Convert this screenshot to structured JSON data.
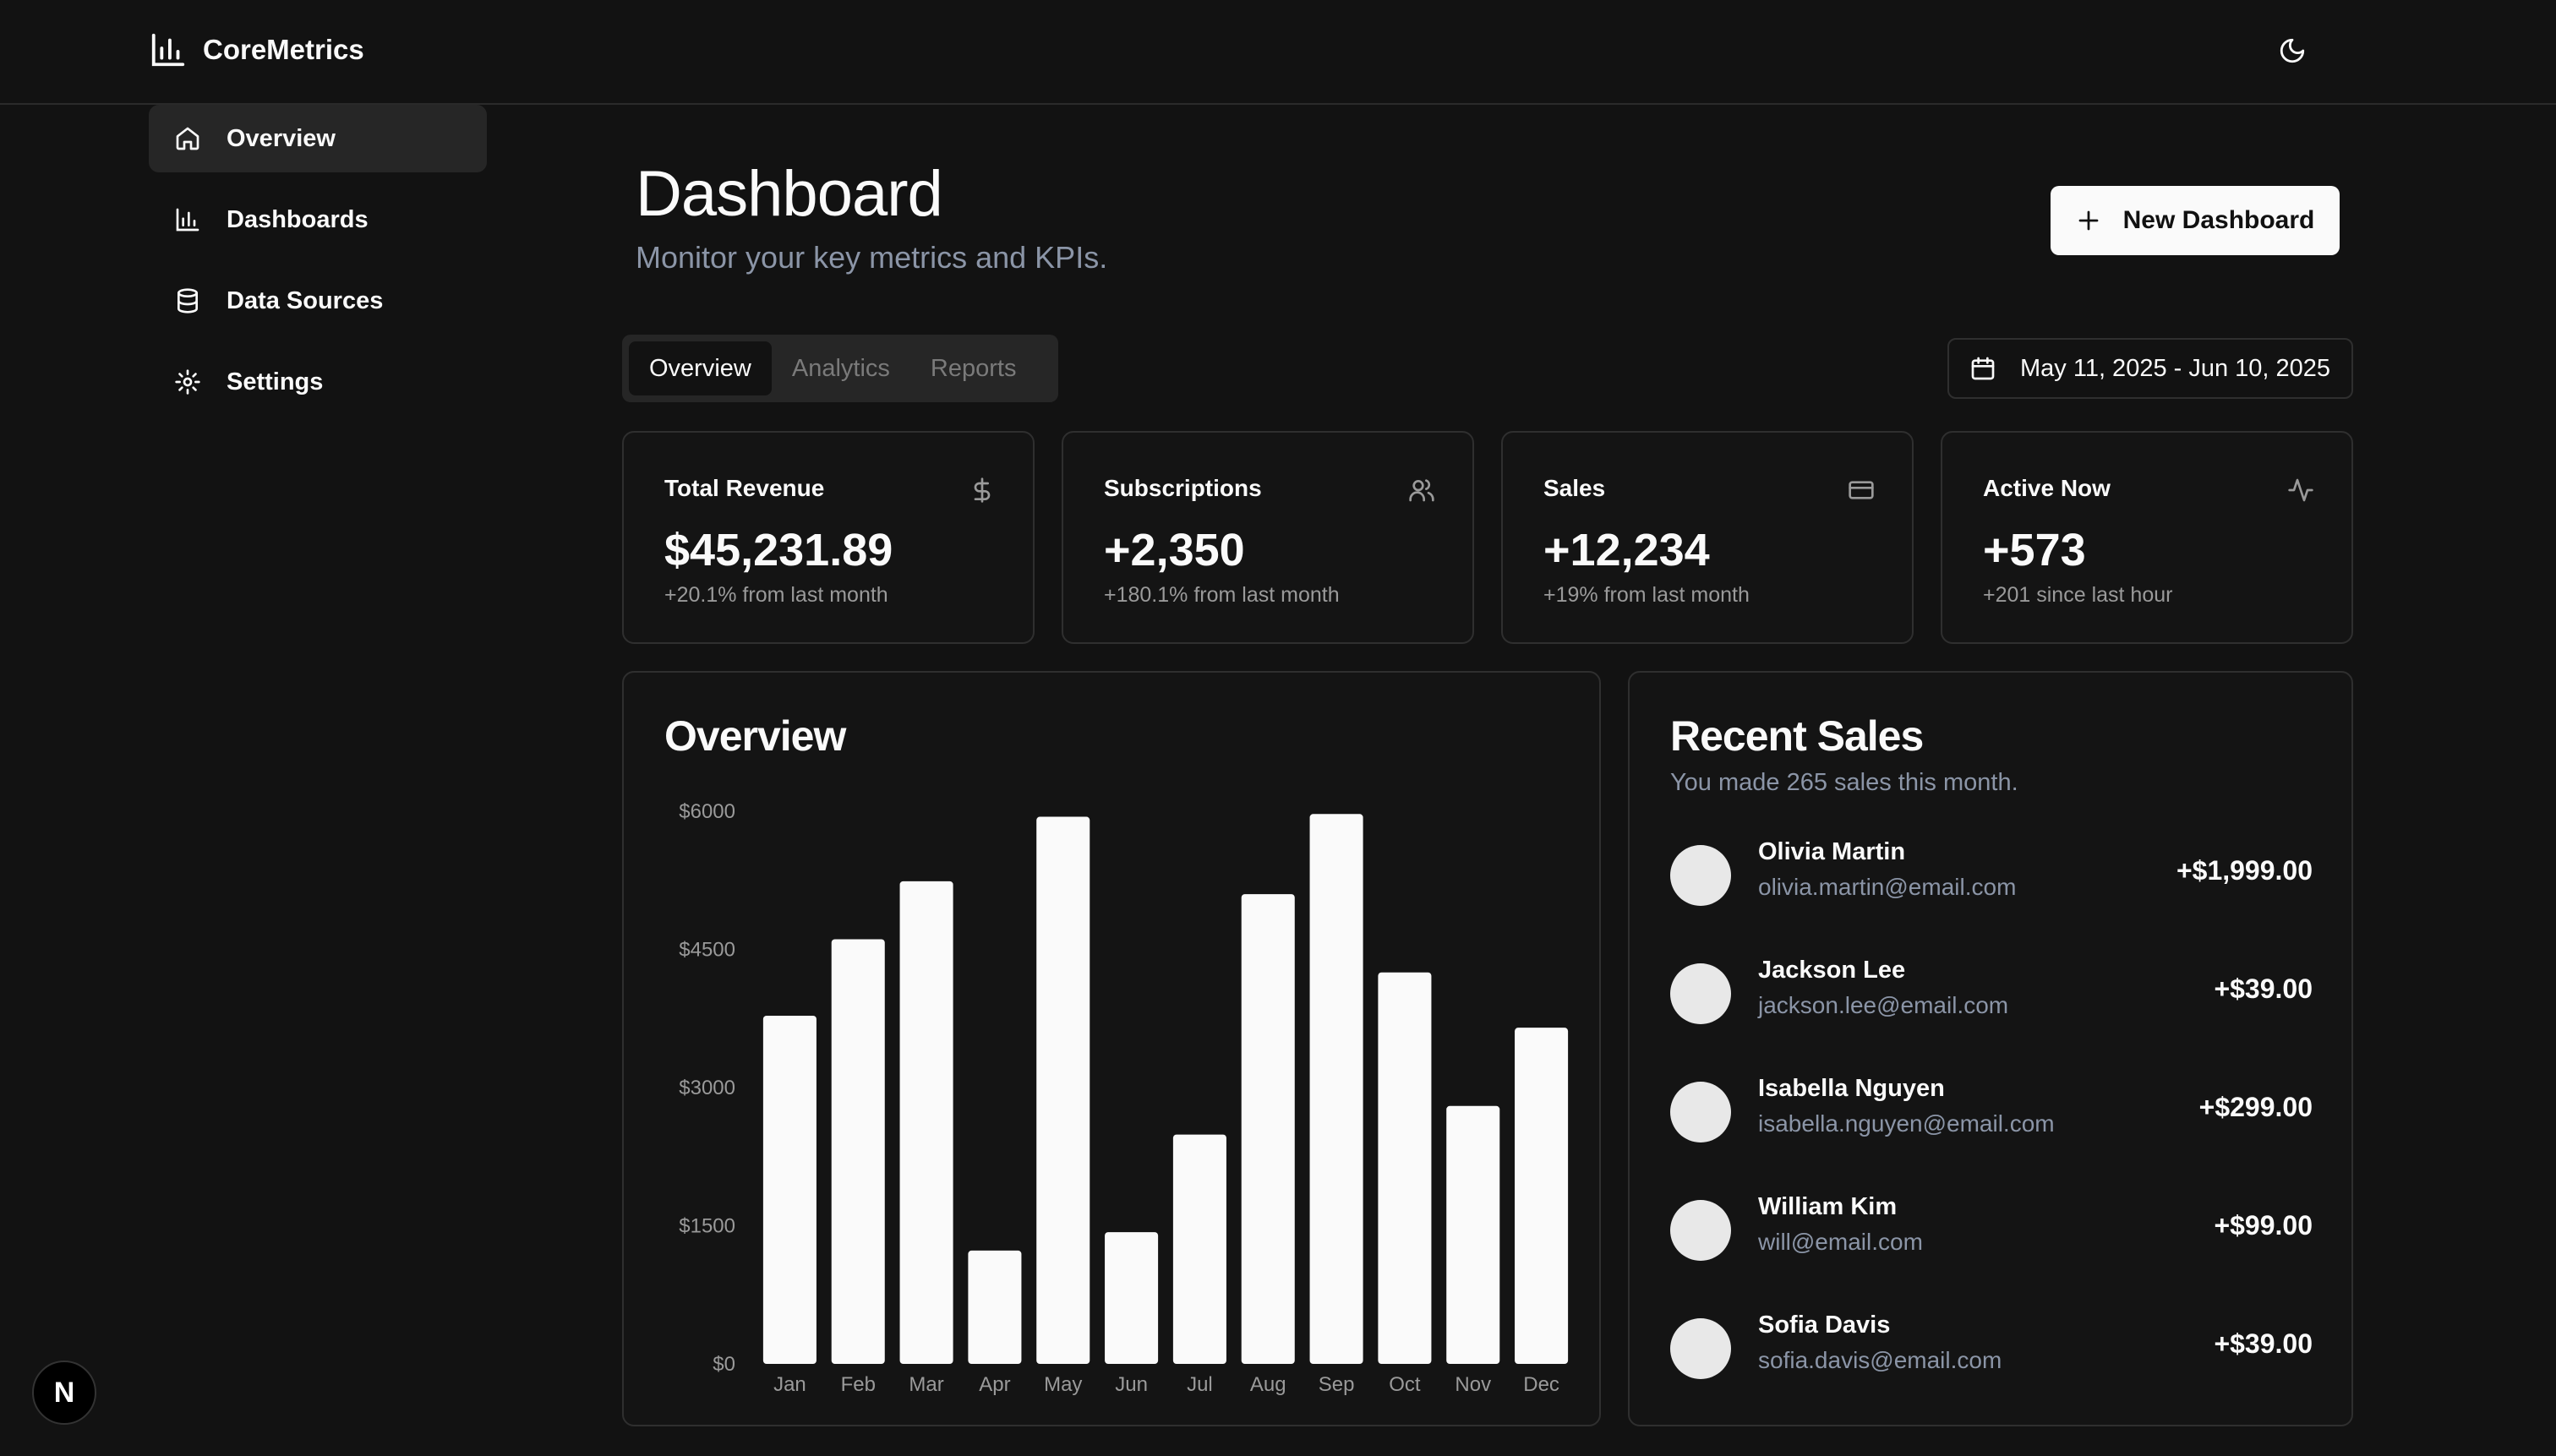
{
  "app": {
    "name": "CoreMetrics"
  },
  "sidebar": {
    "items": [
      {
        "label": "Overview",
        "icon": "home-icon",
        "active": true
      },
      {
        "label": "Dashboards",
        "icon": "bar-chart-icon",
        "active": false
      },
      {
        "label": "Data Sources",
        "icon": "database-icon",
        "active": false
      },
      {
        "label": "Settings",
        "icon": "gear-icon",
        "active": false
      }
    ]
  },
  "page": {
    "title": "Dashboard",
    "subtitle": "Monitor your key metrics and KPIs.",
    "new_button": "New Dashboard"
  },
  "tabs": [
    {
      "label": "Overview",
      "active": true
    },
    {
      "label": "Analytics",
      "active": false
    },
    {
      "label": "Reports",
      "active": false
    }
  ],
  "date_range": "May 11, 2025 - Jun 10, 2025",
  "kpis": [
    {
      "label": "Total Revenue",
      "value": "$45,231.89",
      "change": "+20.1% from last month",
      "icon": "dollar-icon"
    },
    {
      "label": "Subscriptions",
      "value": "+2,350",
      "change": "+180.1% from last month",
      "icon": "users-icon"
    },
    {
      "label": "Sales",
      "value": "+12,234",
      "change": "+19% from last month",
      "icon": "credit-card-icon"
    },
    {
      "label": "Active Now",
      "value": "+573",
      "change": "+201 since last hour",
      "icon": "activity-icon"
    }
  ],
  "overview": {
    "title": "Overview"
  },
  "chart_data": {
    "type": "bar",
    "title": "Overview",
    "categories": [
      "Jan",
      "Feb",
      "Mar",
      "Apr",
      "May",
      "Jun",
      "Jul",
      "Aug",
      "Sep",
      "Oct",
      "Nov",
      "Dec"
    ],
    "values": [
      3780,
      4610,
      5240,
      1230,
      5940,
      1430,
      2490,
      5100,
      5970,
      4250,
      2800,
      3650
    ],
    "yticks": [
      "$0",
      "$1500",
      "$3000",
      "$4500",
      "$6000"
    ],
    "ylim": [
      0,
      6000
    ],
    "xlabel": "",
    "ylabel": "",
    "bar_color": "#fafafa"
  },
  "recent_sales": {
    "title": "Recent Sales",
    "subtitle": "You made 265 sales this month.",
    "items": [
      {
        "name": "Olivia Martin",
        "email": "olivia.martin@email.com",
        "amount": "+$1,999.00"
      },
      {
        "name": "Jackson Lee",
        "email": "jackson.lee@email.com",
        "amount": "+$39.00"
      },
      {
        "name": "Isabella Nguyen",
        "email": "isabella.nguyen@email.com",
        "amount": "+$299.00"
      },
      {
        "name": "William Kim",
        "email": "will@email.com",
        "amount": "+$99.00"
      },
      {
        "name": "Sofia Davis",
        "email": "sofia.davis@email.com",
        "amount": "+$39.00"
      }
    ]
  },
  "badge": {
    "letter": "N"
  },
  "colors": {
    "background": "#121212",
    "card": "#141414",
    "border": "#2f2f2f",
    "muted": "#8b95a7"
  }
}
